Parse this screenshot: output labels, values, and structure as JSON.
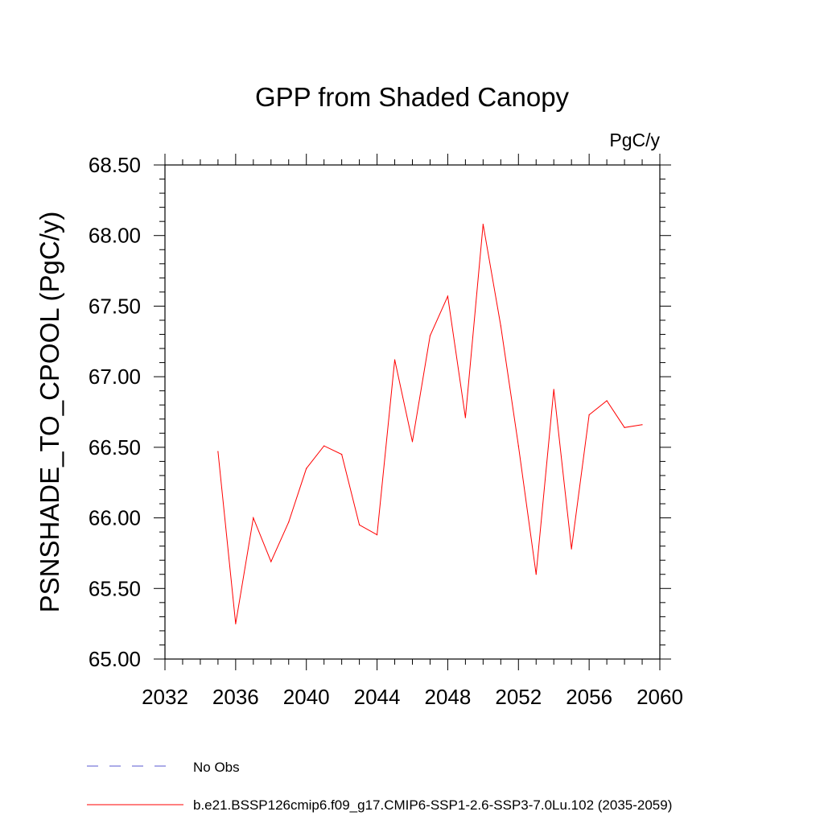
{
  "chart_data": {
    "type": "line",
    "title": "GPP from Shaded Canopy",
    "units_label": "PgC/y",
    "ylabel": "PSNSHADE_TO_CPOOL  (PgC/y)",
    "xlabel": "",
    "xlim": [
      2032,
      2060
    ],
    "ylim": [
      65.0,
      68.5
    ],
    "x_ticks": [
      2032,
      2036,
      2040,
      2044,
      2048,
      2052,
      2056,
      2060
    ],
    "x_tick_labels": [
      "2032",
      "2036",
      "2040",
      "2044",
      "2048",
      "2052",
      "2056",
      "2060"
    ],
    "y_ticks": [
      65.0,
      65.5,
      66.0,
      66.5,
      67.0,
      67.5,
      68.0,
      68.5
    ],
    "y_tick_labels": [
      "65.00",
      "65.50",
      "66.00",
      "66.50",
      "67.00",
      "67.50",
      "68.00",
      "68.50"
    ],
    "grid": false,
    "series": [
      {
        "name": "b.e21.BSSP126cmip6.f09_g17.CMIP6-SSP1-2.6-SSP3-7.0Lu.102 (2035-2059)",
        "color": "#ff0000",
        "x": [
          2035,
          2036,
          2037,
          2038,
          2039,
          2040,
          2041,
          2042,
          2043,
          2044,
          2045,
          2046,
          2047,
          2048,
          2049,
          2050,
          2051,
          2052,
          2053,
          2054,
          2055,
          2056,
          2057,
          2058,
          2059
        ],
        "values": [
          66.47,
          65.25,
          66.0,
          65.69,
          65.97,
          66.35,
          66.51,
          66.45,
          65.95,
          65.88,
          67.12,
          66.54,
          67.29,
          67.57,
          66.71,
          68.08,
          67.36,
          66.51,
          65.6,
          66.91,
          65.78,
          66.73,
          66.83,
          66.64,
          66.66
        ]
      }
    ],
    "legend": [
      {
        "label": "No Obs",
        "style": "dashed",
        "color": "#5a5ad0"
      },
      {
        "label": "b.e21.BSSP126cmip6.f09_g17.CMIP6-SSP1-2.6-SSP3-7.0Lu.102 (2035-2059)",
        "style": "solid",
        "color": "#ff0000"
      }
    ],
    "legend_position": "bottom-left"
  }
}
